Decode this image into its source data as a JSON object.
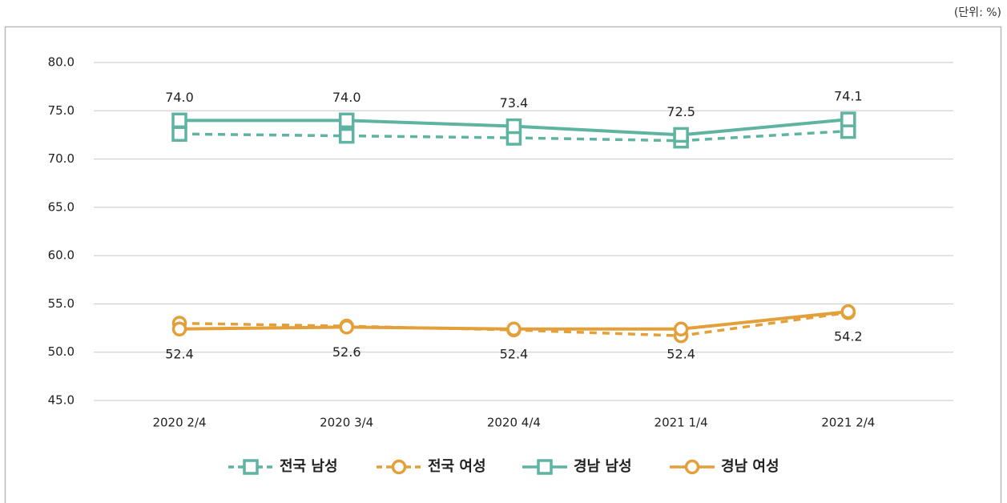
{
  "chart_data": {
    "type": "line",
    "unit": "(단위: %)",
    "categories": [
      "2020 2/4",
      "2020 3/4",
      "2020 4/4",
      "2021 1/4",
      "2021 2/4"
    ],
    "ylim": [
      45,
      80
    ],
    "yticks": [
      {
        "value": 45,
        "label": "45.0"
      },
      {
        "value": 50,
        "label": "50.0"
      },
      {
        "value": 55,
        "label": "55.0"
      },
      {
        "value": 60,
        "label": "60.0"
      },
      {
        "value": 65,
        "label": "65.0"
      },
      {
        "value": 70,
        "label": "70.0"
      },
      {
        "value": 75,
        "label": "75.0"
      },
      {
        "value": 80,
        "label": "80.0"
      }
    ],
    "grid": true,
    "legend": "bottom",
    "series": [
      {
        "name": "전국 남성",
        "color": "#5fb3a1",
        "dashed": true,
        "marker": "square",
        "values": [
          72.6,
          72.4,
          72.2,
          71.9,
          72.9
        ]
      },
      {
        "name": "전국 여성",
        "color": "#e3a03a",
        "dashed": true,
        "marker": "circle",
        "values": [
          53.0,
          52.7,
          52.3,
          51.7,
          54.1
        ]
      },
      {
        "name": "경남 남성",
        "color": "#5fb3a1",
        "dashed": false,
        "marker": "square",
        "values": [
          74.0,
          74.0,
          73.4,
          72.5,
          74.1
        ],
        "value_labels": [
          "74.0",
          "74.0",
          "73.4",
          "72.5",
          "74.1"
        ],
        "label_position": "above"
      },
      {
        "name": "경남 여성",
        "color": "#e3a03a",
        "dashed": false,
        "marker": "circle",
        "values": [
          52.4,
          52.6,
          52.4,
          52.4,
          54.2
        ],
        "value_labels": [
          "52.4",
          "52.6",
          "52.4",
          "52.4",
          "54.2"
        ],
        "label_position": "below"
      }
    ]
  }
}
